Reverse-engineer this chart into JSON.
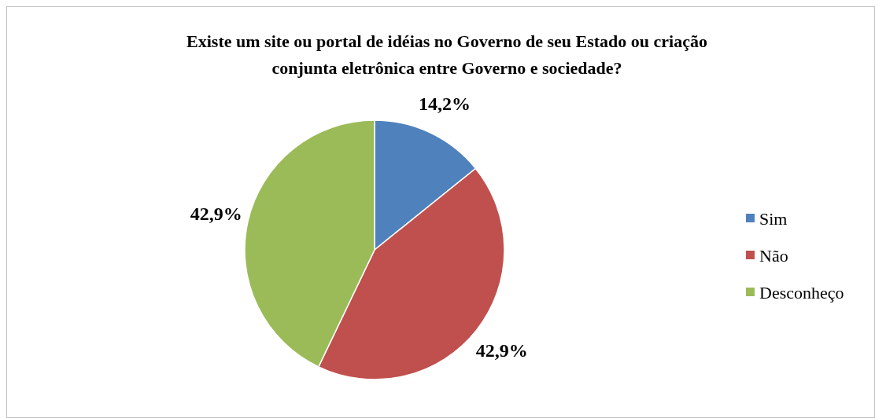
{
  "chart_data": {
    "type": "pie",
    "title": "Existe um site ou portal de idéias no Governo de seu Estado ou criação\nconjunta eletrônica entre Governo e sociedade?",
    "categories": [
      "Sim",
      "Não",
      "Desconheço"
    ],
    "values": [
      14.2,
      42.9,
      42.9
    ],
    "colors": [
      "#4f81bd",
      "#c0504d",
      "#9bbb59"
    ],
    "value_labels": [
      "14,2%",
      "42,9%",
      "42,9%"
    ],
    "legend": "right"
  }
}
